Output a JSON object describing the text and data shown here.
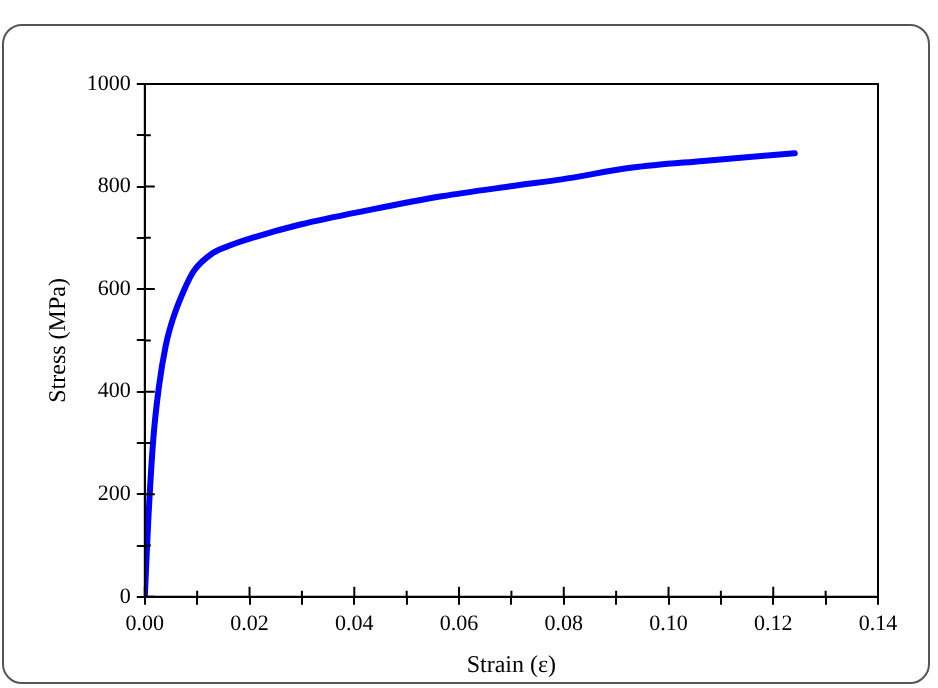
{
  "chart_data": {
    "type": "line",
    "xlabel": "Strain (ε)",
    "ylabel": "Stress (MPa)",
    "x": [
      0,
      0.00065,
      0.0016,
      0.0027,
      0.004,
      0.0054,
      0.0074,
      0.0094,
      0.0128,
      0.0162,
      0.0202,
      0.0297,
      0.0432,
      0.0567,
      0.0702,
      0.0796,
      0.0931,
      0.1066,
      0.1241
    ],
    "series": [
      {
        "color": "#0000ff",
        "values": [
          0,
          146,
          305,
          410,
          490,
          543,
          596,
          636,
          669,
          685,
          699,
          726,
          755,
          781,
          801,
          814,
          837,
          850,
          865
        ]
      }
    ],
    "xlim": [
      0,
      0.14
    ],
    "xticks": [
      {
        "value": 0,
        "label": "0.00"
      },
      {
        "value": 0.01,
        "label": null
      },
      {
        "value": 0.02,
        "label": "0.02"
      },
      {
        "value": 0.03,
        "label": null
      },
      {
        "value": 0.04,
        "label": "0.04"
      },
      {
        "value": 0.05,
        "label": null
      },
      {
        "value": 0.06,
        "label": "0.06"
      },
      {
        "value": 0.07,
        "label": null
      },
      {
        "value": 0.08,
        "label": "0.08"
      },
      {
        "value": 0.09,
        "label": null
      },
      {
        "value": 0.1,
        "label": "0.10"
      },
      {
        "value": 0.11,
        "label": null
      },
      {
        "value": 0.12,
        "label": "0.12"
      },
      {
        "value": 0.13,
        "label": null
      },
      {
        "value": 0.14,
        "label": "0.14"
      }
    ],
    "ylim": [
      0,
      1000
    ],
    "yticks": [
      0,
      {
        "value": 100,
        "label": null
      },
      200,
      {
        "value": 300,
        "label": null
      },
      400,
      {
        "value": 500,
        "label": null
      },
      600,
      {
        "value": 700,
        "label": null
      },
      800,
      {
        "value": 900,
        "label": null
      },
      1000
    ],
    "grid": false,
    "legend": false,
    "marker": "none",
    "line_style": "solid"
  }
}
